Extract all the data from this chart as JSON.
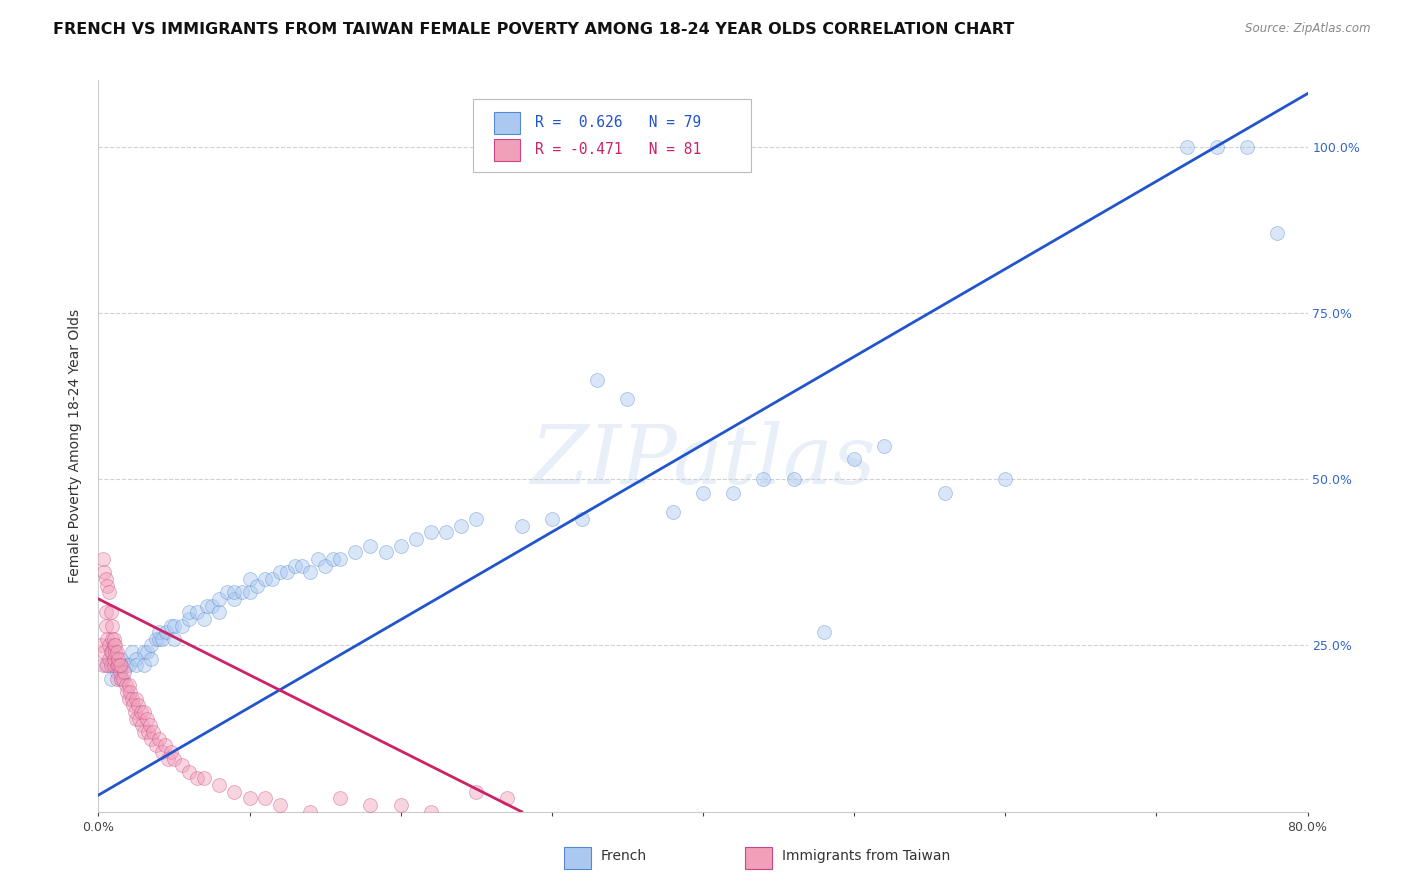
{
  "title": "FRENCH VS IMMIGRANTS FROM TAIWAN FEMALE POVERTY AMONG 18-24 YEAR OLDS CORRELATION CHART",
  "source": "Source: ZipAtlas.com",
  "ylabel": "Female Poverty Among 18-24 Year Olds",
  "watermark": "ZIPatlas",
  "xlim": [
    0.0,
    0.8
  ],
  "ylim": [
    0.0,
    1.1
  ],
  "xticks": [
    0.0,
    0.1,
    0.2,
    0.3,
    0.4,
    0.5,
    0.6,
    0.7,
    0.8
  ],
  "xticklabels": [
    "0.0%",
    "",
    "",
    "",
    "",
    "",
    "",
    "",
    "80.0%"
  ],
  "yticks": [
    0.0,
    0.25,
    0.5,
    0.75,
    1.0
  ],
  "yticklabels_right": [
    "",
    "25.0%",
    "50.0%",
    "75.0%",
    "100.0%"
  ],
  "blue_R": 0.626,
  "blue_N": 79,
  "pink_R": -0.471,
  "pink_N": 81,
  "blue_color": "#aac8f0",
  "pink_color": "#f0a0b8",
  "blue_edge_color": "#5588cc",
  "pink_edge_color": "#cc4488",
  "blue_line_color": "#2255cc",
  "pink_line_color": "#cc2266",
  "blue_line_x0": 0.0,
  "blue_line_y0": 0.025,
  "blue_line_x1": 0.8,
  "blue_line_y1": 1.08,
  "pink_line_x0": 0.0,
  "pink_line_y0": 0.32,
  "pink_line_x1": 0.28,
  "pink_line_y1": 0.0,
  "grid_color": "#cccccc",
  "background_color": "#ffffff",
  "title_fontsize": 11.5,
  "axis_fontsize": 10,
  "tick_fontsize": 9,
  "marker_size": 100,
  "marker_alpha": 0.45,
  "blue_scatter_x": [
    0.005,
    0.008,
    0.01,
    0.012,
    0.015,
    0.015,
    0.018,
    0.02,
    0.022,
    0.025,
    0.025,
    0.03,
    0.03,
    0.032,
    0.035,
    0.035,
    0.038,
    0.04,
    0.04,
    0.042,
    0.045,
    0.048,
    0.05,
    0.05,
    0.055,
    0.06,
    0.06,
    0.065,
    0.07,
    0.072,
    0.075,
    0.08,
    0.08,
    0.085,
    0.09,
    0.09,
    0.095,
    0.1,
    0.1,
    0.105,
    0.11,
    0.115,
    0.12,
    0.125,
    0.13,
    0.135,
    0.14,
    0.145,
    0.15,
    0.155,
    0.16,
    0.17,
    0.18,
    0.19,
    0.2,
    0.21,
    0.22,
    0.23,
    0.24,
    0.25,
    0.28,
    0.3,
    0.32,
    0.33,
    0.35,
    0.38,
    0.4,
    0.42,
    0.44,
    0.46,
    0.48,
    0.5,
    0.52,
    0.56,
    0.6,
    0.72,
    0.74,
    0.76,
    0.78
  ],
  "blue_scatter_y": [
    0.22,
    0.2,
    0.22,
    0.21,
    0.2,
    0.23,
    0.22,
    0.22,
    0.24,
    0.23,
    0.22,
    0.24,
    0.22,
    0.24,
    0.25,
    0.23,
    0.26,
    0.26,
    0.27,
    0.26,
    0.27,
    0.28,
    0.26,
    0.28,
    0.28,
    0.29,
    0.3,
    0.3,
    0.29,
    0.31,
    0.31,
    0.3,
    0.32,
    0.33,
    0.32,
    0.33,
    0.33,
    0.33,
    0.35,
    0.34,
    0.35,
    0.35,
    0.36,
    0.36,
    0.37,
    0.37,
    0.36,
    0.38,
    0.37,
    0.38,
    0.38,
    0.39,
    0.4,
    0.39,
    0.4,
    0.41,
    0.42,
    0.42,
    0.43,
    0.44,
    0.43,
    0.44,
    0.44,
    0.65,
    0.62,
    0.45,
    0.48,
    0.48,
    0.5,
    0.5,
    0.27,
    0.53,
    0.55,
    0.48,
    0.5,
    1.0,
    1.0,
    1.0,
    0.87
  ],
  "pink_scatter_x": [
    0.002,
    0.003,
    0.004,
    0.005,
    0.005,
    0.006,
    0.006,
    0.007,
    0.007,
    0.008,
    0.008,
    0.009,
    0.009,
    0.01,
    0.01,
    0.01,
    0.011,
    0.012,
    0.012,
    0.013,
    0.014,
    0.015,
    0.015,
    0.016,
    0.017,
    0.018,
    0.019,
    0.02,
    0.02,
    0.021,
    0.022,
    0.023,
    0.024,
    0.025,
    0.025,
    0.026,
    0.027,
    0.028,
    0.029,
    0.03,
    0.03,
    0.032,
    0.033,
    0.034,
    0.035,
    0.036,
    0.038,
    0.04,
    0.042,
    0.044,
    0.046,
    0.048,
    0.05,
    0.055,
    0.06,
    0.065,
    0.07,
    0.08,
    0.09,
    0.1,
    0.11,
    0.12,
    0.14,
    0.16,
    0.18,
    0.2,
    0.22,
    0.25,
    0.27,
    0.003,
    0.004,
    0.005,
    0.006,
    0.007,
    0.008,
    0.009,
    0.01,
    0.011,
    0.012,
    0.013,
    0.014
  ],
  "pink_scatter_y": [
    0.25,
    0.22,
    0.24,
    0.28,
    0.3,
    0.26,
    0.22,
    0.25,
    0.23,
    0.24,
    0.22,
    0.26,
    0.24,
    0.22,
    0.25,
    0.23,
    0.24,
    0.22,
    0.2,
    0.22,
    0.21,
    0.2,
    0.22,
    0.2,
    0.21,
    0.19,
    0.18,
    0.17,
    0.19,
    0.18,
    0.17,
    0.16,
    0.15,
    0.17,
    0.14,
    0.16,
    0.14,
    0.15,
    0.13,
    0.15,
    0.12,
    0.14,
    0.12,
    0.13,
    0.11,
    0.12,
    0.1,
    0.11,
    0.09,
    0.1,
    0.08,
    0.09,
    0.08,
    0.07,
    0.06,
    0.05,
    0.05,
    0.04,
    0.03,
    0.02,
    0.02,
    0.01,
    0.0,
    0.02,
    0.01,
    0.01,
    0.0,
    0.03,
    0.02,
    0.38,
    0.36,
    0.35,
    0.34,
    0.33,
    0.3,
    0.28,
    0.26,
    0.25,
    0.24,
    0.23,
    0.22
  ]
}
